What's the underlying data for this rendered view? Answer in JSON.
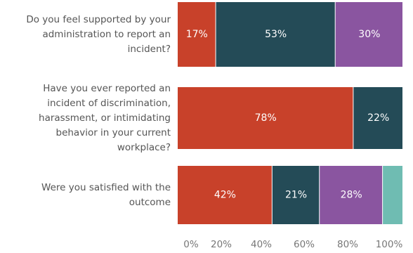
{
  "chart_data": {
    "type": "bar",
    "orientation": "horizontal",
    "stacked": true,
    "categories": [
      [
        "Do you feel supported by your",
        "administration to report an",
        "incident?"
      ],
      [
        "Have you ever reported an",
        "incident of discrimination,",
        "harassment, or intimidating",
        "behavior in your current",
        "workplace?"
      ],
      [
        "Were you satisfied with the",
        "outcome"
      ]
    ],
    "series": [
      {
        "values": [
          17,
          78,
          42
        ],
        "labels": [
          "17%",
          "78%",
          "42%"
        ]
      },
      {
        "values": [
          53,
          22,
          21
        ],
        "labels": [
          "53%",
          "22%",
          "21%"
        ]
      },
      {
        "values": [
          30,
          0,
          28
        ],
        "labels": [
          "30%",
          "",
          "28%"
        ]
      },
      {
        "values": [
          0,
          0,
          9
        ],
        "labels": [
          "",
          "",
          ""
        ]
      }
    ],
    "xticks": [
      "0%",
      "20%",
      "40%",
      "60%",
      "80%",
      "100%"
    ],
    "xlim": [
      0,
      100
    ],
    "grid": false,
    "legend": "none",
    "colors": [
      "#c8412a",
      "#244b57",
      "#8a55a0",
      "#6fbcb2"
    ]
  }
}
